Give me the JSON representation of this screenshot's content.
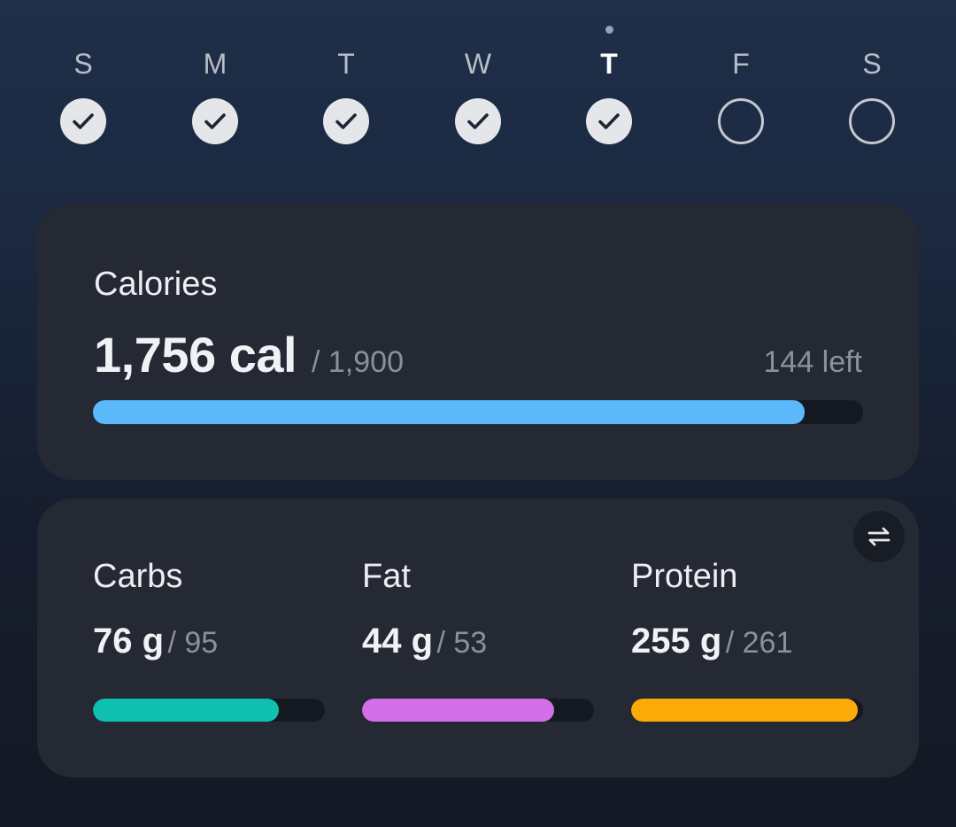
{
  "week": {
    "days": [
      {
        "letter": "S",
        "done": true,
        "today": false
      },
      {
        "letter": "M",
        "done": true,
        "today": false
      },
      {
        "letter": "T",
        "done": true,
        "today": false
      },
      {
        "letter": "W",
        "done": true,
        "today": false
      },
      {
        "letter": "T",
        "done": true,
        "today": true
      },
      {
        "letter": "F",
        "done": false,
        "today": false
      },
      {
        "letter": "S",
        "done": false,
        "today": false
      }
    ]
  },
  "calories": {
    "title": "Calories",
    "value": "1,756 cal",
    "goal": "/ 1,900",
    "left": "144 left",
    "progress": 0.924,
    "color": "#5bb8fb"
  },
  "macros": {
    "swap_icon": "swap-arrows-icon",
    "items": [
      {
        "name": "Carbs",
        "value": "76 g",
        "goal": "/ 95",
        "progress": 0.8,
        "color": "#0fbfb0"
      },
      {
        "name": "Fat",
        "value": "44 g",
        "goal": "/ 53",
        "progress": 0.83,
        "color": "#d36fe8"
      },
      {
        "name": "Protein",
        "value": "255 g",
        "goal": "/ 261",
        "progress": 0.977,
        "color": "#fbaa08"
      }
    ]
  }
}
